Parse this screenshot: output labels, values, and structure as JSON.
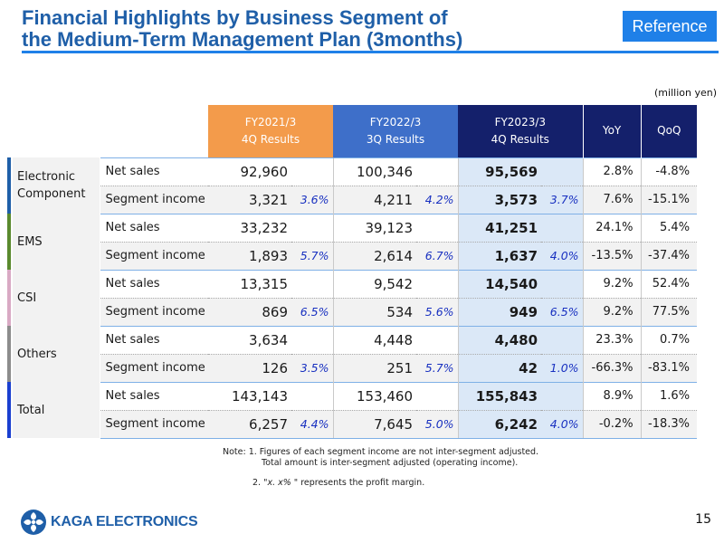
{
  "title_line1": "Financial Highlights by Business Segment of",
  "title_line2": "the Medium-Term Management Plan (3months)",
  "badge": "Reference",
  "unit": "(million yen)",
  "columns": {
    "fy21_line1": "FY2021/3",
    "fy21_line2": "4Q Results",
    "fy22_line1": "FY2022/3",
    "fy22_line2": "3Q Results",
    "fy23_line1": "FY2023/3",
    "fy23_line2": "4Q Results",
    "yoy": "YoY",
    "qoq": "QoQ"
  },
  "segments": [
    {
      "name": "Electronic Component",
      "color": "#1f5fa8",
      "rows": [
        {
          "item": "Net sales",
          "fy21": "92,960",
          "fy21_m": "",
          "fy22": "100,346",
          "fy22_m": "",
          "fy23": "95,569",
          "fy23_m": "",
          "yoy": "2.8%",
          "qoq": "-4.8%"
        },
        {
          "item": "Segment income",
          "fy21": "3,321",
          "fy21_m": "3.6%",
          "fy22": "4,211",
          "fy22_m": "4.2%",
          "fy23": "3,573",
          "fy23_m": "3.7%",
          "yoy": "7.6%",
          "qoq": "-15.1%"
        }
      ]
    },
    {
      "name": "EMS",
      "color": "#5a8a2e",
      "rows": [
        {
          "item": "Net sales",
          "fy21": "33,232",
          "fy21_m": "",
          "fy22": "39,123",
          "fy22_m": "",
          "fy23": "41,251",
          "fy23_m": "",
          "yoy": "24.1%",
          "qoq": "5.4%"
        },
        {
          "item": "Segment income",
          "fy21": "1,893",
          "fy21_m": "5.7%",
          "fy22": "2,614",
          "fy22_m": "6.7%",
          "fy23": "1,637",
          "fy23_m": "4.0%",
          "yoy": "-13.5%",
          "qoq": "-37.4%"
        }
      ]
    },
    {
      "name": "CSI",
      "color": "#d9a9c4",
      "rows": [
        {
          "item": "Net sales",
          "fy21": "13,315",
          "fy21_m": "",
          "fy22": "9,542",
          "fy22_m": "",
          "fy23": "14,540",
          "fy23_m": "",
          "yoy": "9.2%",
          "qoq": "52.4%"
        },
        {
          "item": "Segment income",
          "fy21": "869",
          "fy21_m": "6.5%",
          "fy22": "534",
          "fy22_m": "5.6%",
          "fy23": "949",
          "fy23_m": "6.5%",
          "yoy": "9.2%",
          "qoq": "77.5%"
        }
      ]
    },
    {
      "name": "Others",
      "color": "#8c8c8c",
      "rows": [
        {
          "item": "Net sales",
          "fy21": "3,634",
          "fy21_m": "",
          "fy22": "4,448",
          "fy22_m": "",
          "fy23": "4,480",
          "fy23_m": "",
          "yoy": "23.3%",
          "qoq": "0.7%"
        },
        {
          "item": "Segment income",
          "fy21": "126",
          "fy21_m": "3.5%",
          "fy22": "251",
          "fy22_m": "5.7%",
          "fy23": "42",
          "fy23_m": "1.0%",
          "yoy": "-66.3%",
          "qoq": "-83.1%"
        }
      ]
    },
    {
      "name": "Total",
      "color": "#1a3fd0",
      "rows": [
        {
          "item": "Net sales",
          "fy21": "143,143",
          "fy21_m": "",
          "fy22": "153,460",
          "fy22_m": "",
          "fy23": "155,843",
          "fy23_m": "",
          "yoy": "8.9%",
          "qoq": "1.6%"
        },
        {
          "item": "Segment income",
          "fy21": "6,257",
          "fy21_m": "4.4%",
          "fy22": "7,645",
          "fy22_m": "5.0%",
          "fy23": "6,242",
          "fy23_m": "4.0%",
          "yoy": "-0.2%",
          "qoq": "-18.3%"
        }
      ]
    }
  ],
  "notes": {
    "line1": "Note: 1. Figures of each segment income are not inter-segment adjusted.",
    "line2": "Total amount is inter-segment adjusted (operating income).",
    "line3_pre": "2. \"",
    "line3_em": "x. x%",
    "line3_post": " \" represents the profit margin."
  },
  "logo_text": "KAGA ELECTRONICS",
  "page_number": "15",
  "colors": {
    "title": "#1f5fa8",
    "badge": "#1f80e8",
    "margin_text": "#1830c0"
  }
}
